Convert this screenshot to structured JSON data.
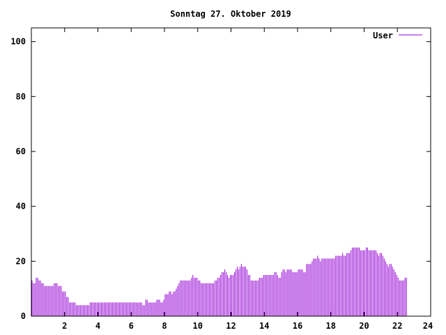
{
  "chart_data": {
    "type": "bar",
    "title": "Sonntag 27. Oktober 2019",
    "xlabel": "",
    "ylabel": "",
    "xlim": [
      0,
      24
    ],
    "ylim": [
      0,
      105
    ],
    "x_ticks": [
      2,
      4,
      6,
      8,
      10,
      12,
      14,
      16,
      18,
      20,
      22,
      24
    ],
    "y_ticks": [
      0,
      20,
      40,
      60,
      80,
      100
    ],
    "x_tick_labels": [
      "2",
      "4",
      "6",
      "8",
      "10",
      "12",
      "14",
      "16",
      "18",
      "20",
      "22",
      "24"
    ],
    "y_tick_labels": [
      "0",
      "20",
      "40",
      "60",
      "80",
      "100"
    ],
    "grid": false,
    "legend": {
      "position": "top-right"
    },
    "series": [
      {
        "name": "User",
        "color": "#9400d3",
        "x_step_minutes": 5,
        "values": [
          13,
          12,
          12,
          14,
          14,
          13,
          13,
          12,
          12,
          11,
          11,
          11,
          11,
          11,
          11,
          11,
          12,
          12,
          12,
          11,
          11,
          11,
          9,
          9,
          9,
          7,
          7,
          5,
          5,
          5,
          5,
          5,
          4,
          4,
          4,
          4,
          4,
          4,
          4,
          4,
          4,
          4,
          5,
          5,
          5,
          5,
          5,
          5,
          5,
          5,
          5,
          5,
          5,
          5,
          5,
          5,
          5,
          5,
          5,
          5,
          5,
          5,
          5,
          5,
          5,
          5,
          5,
          5,
          5,
          5,
          5,
          5,
          5,
          5,
          5,
          5,
          5,
          5,
          5,
          5,
          4,
          4,
          6,
          6,
          5,
          5,
          5,
          5,
          5,
          5,
          6,
          6,
          6,
          5,
          5,
          6,
          8,
          8,
          8,
          9,
          9,
          8,
          9,
          9,
          10,
          11,
          12,
          13,
          13,
          13,
          13,
          13,
          13,
          13,
          13,
          14,
          15,
          14,
          14,
          14,
          13,
          13,
          12,
          12,
          12,
          12,
          12,
          12,
          12,
          12,
          12,
          12,
          13,
          13,
          14,
          14,
          15,
          16,
          16,
          17,
          16,
          15,
          14,
          15,
          15,
          15,
          16,
          17,
          18,
          17,
          18,
          19,
          18,
          18,
          18,
          17,
          15,
          15,
          13,
          13,
          13,
          13,
          13,
          13,
          14,
          14,
          14,
          15,
          15,
          15,
          15,
          15,
          15,
          15,
          15,
          16,
          16,
          15,
          14,
          14,
          16,
          17,
          17,
          16,
          17,
          17,
          17,
          17,
          16,
          16,
          16,
          16,
          17,
          17,
          17,
          17,
          16,
          16,
          19,
          19,
          19,
          19,
          20,
          21,
          21,
          21,
          22,
          21,
          20,
          21,
          21,
          21,
          21,
          21,
          21,
          21,
          21,
          21,
          21,
          22,
          22,
          22,
          22,
          22,
          23,
          22,
          22,
          23,
          23,
          23,
          24,
          25,
          25,
          25,
          25,
          25,
          25,
          24,
          24,
          24,
          24,
          25,
          25,
          24,
          24,
          24,
          24,
          24,
          24,
          23,
          22,
          23,
          23,
          22,
          21,
          20,
          19,
          18,
          19,
          19,
          18,
          17,
          16,
          15,
          14,
          13,
          13,
          13,
          13,
          14,
          14
        ]
      }
    ]
  }
}
